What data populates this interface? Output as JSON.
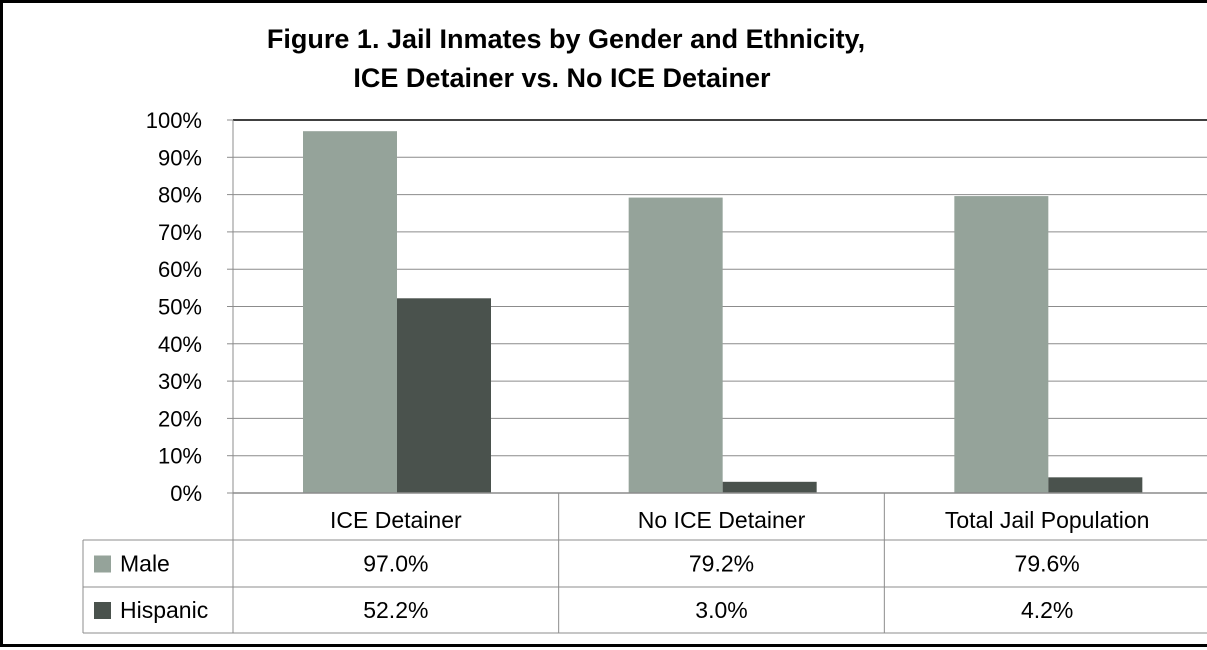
{
  "chart_data": {
    "type": "bar",
    "title": "Figure 1. Jail Inmates by Gender and Ethnicity,",
    "subtitle": "ICE Detainer vs. No ICE Detainer",
    "categories": [
      "ICE Detainer",
      "No ICE Detainer",
      "Total Jail Population"
    ],
    "series": [
      {
        "name": "Male",
        "values": [
          97.0,
          79.2,
          79.6
        ],
        "labels": [
          "97.0%",
          "79.2%",
          "79.6%"
        ],
        "color": "#95a39a"
      },
      {
        "name": "Hispanic",
        "values": [
          52.2,
          3.0,
          4.2
        ],
        "labels": [
          "52.2%",
          "3.0%",
          "4.2%"
        ],
        "color": "#4a524d"
      }
    ],
    "ylim": [
      0,
      100
    ],
    "yticks": [
      "0%",
      "10%",
      "20%",
      "30%",
      "40%",
      "50%",
      "60%",
      "70%",
      "80%",
      "90%",
      "100%"
    ],
    "grid": true,
    "legend": "data-table"
  }
}
